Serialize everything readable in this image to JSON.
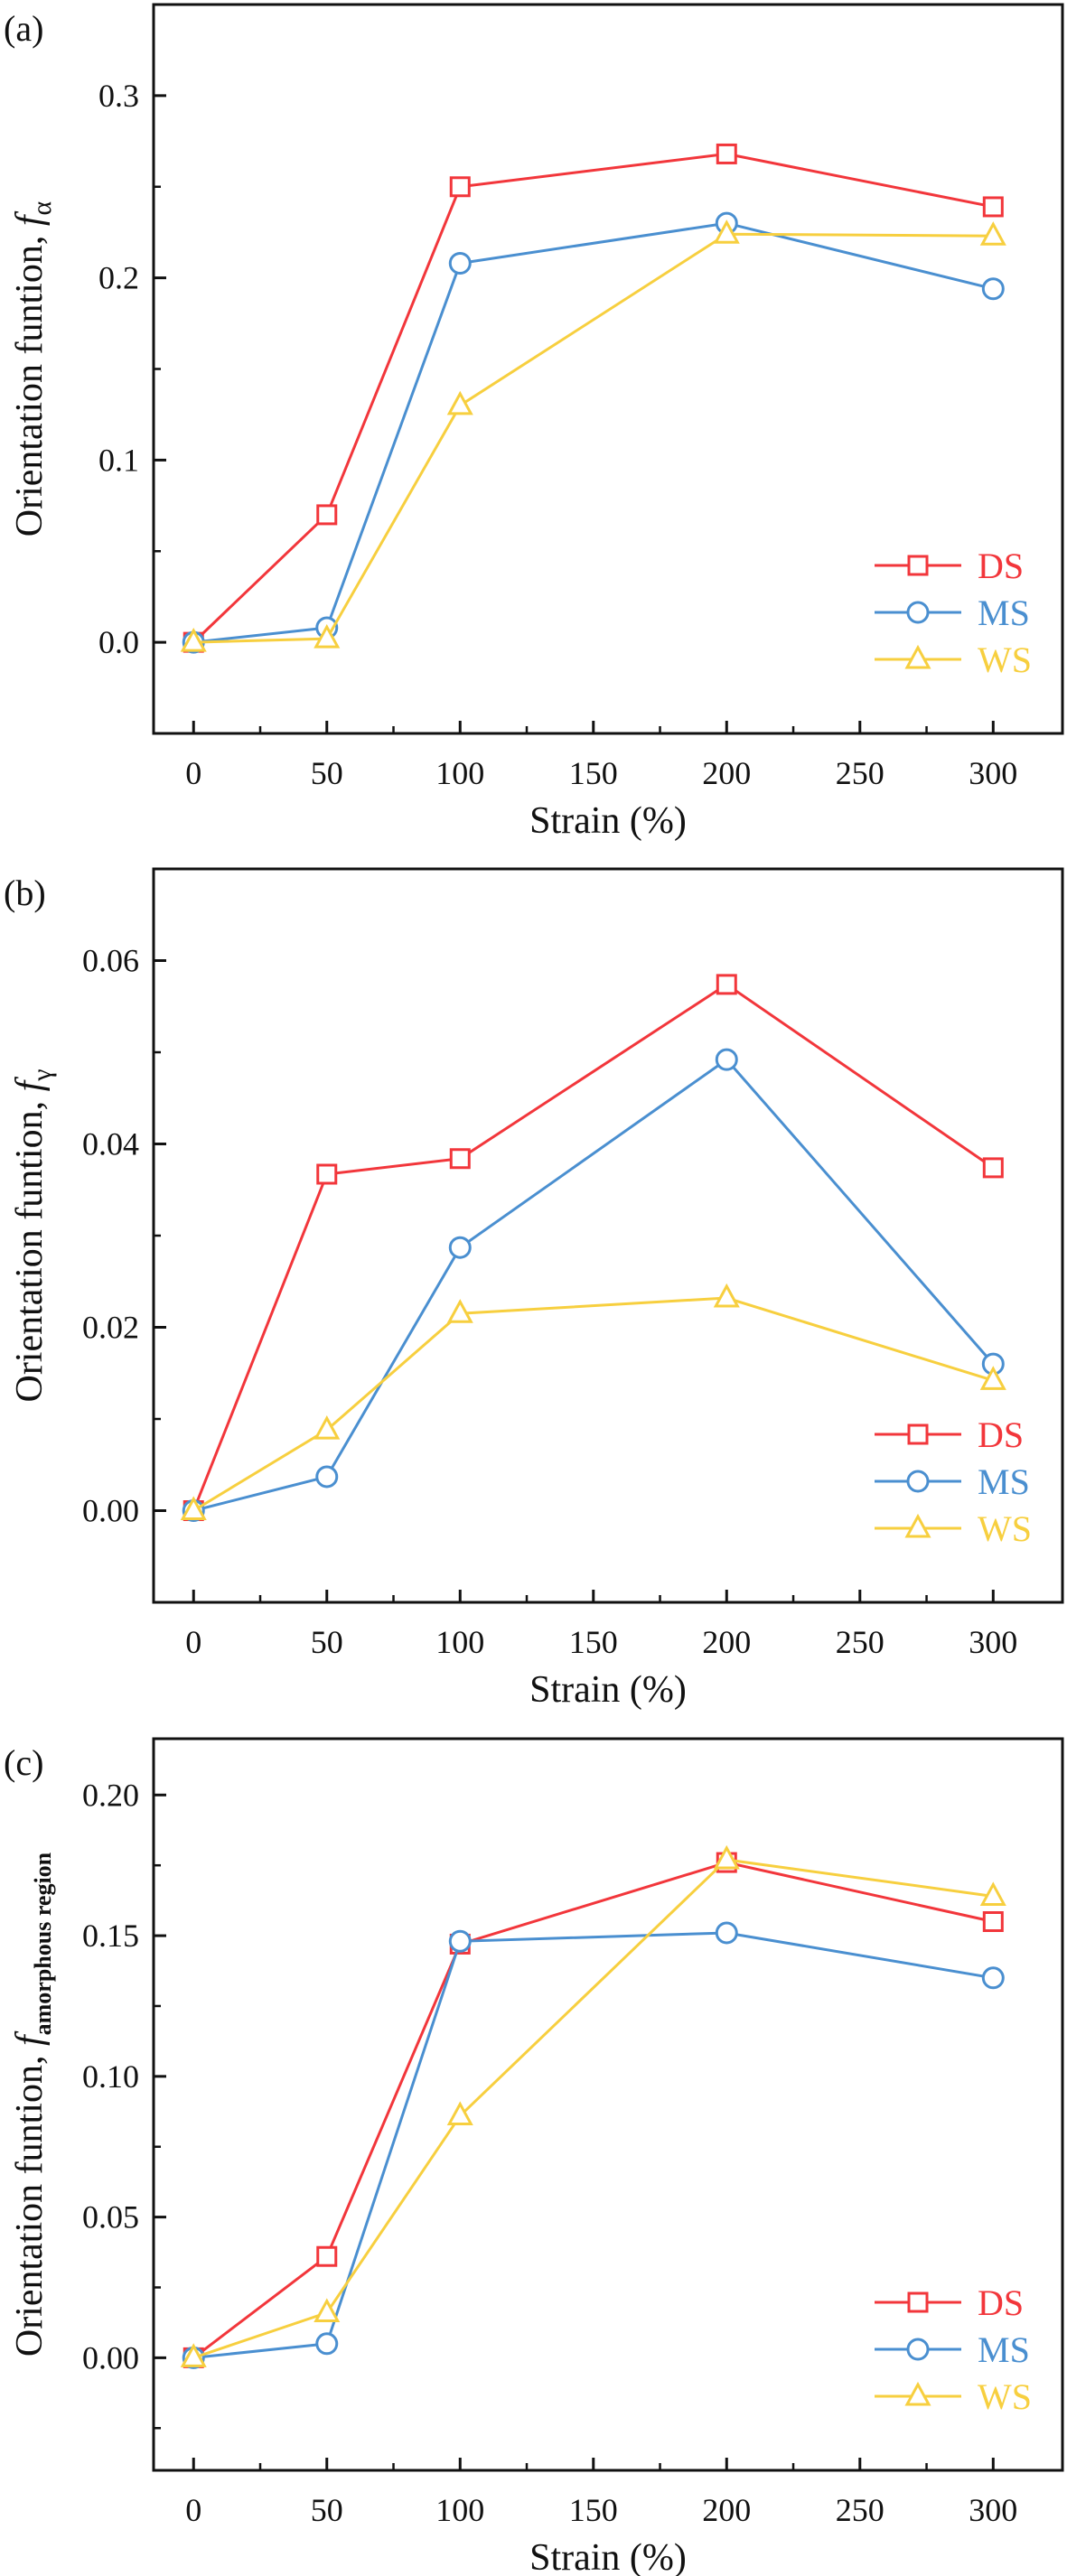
{
  "colors": {
    "DS": "#f2363b",
    "MS": "#4a8fd0",
    "WS": "#f7cf3f",
    "axis": "#111111"
  },
  "chart_data": [
    {
      "type": "line",
      "panel_label": "(a)",
      "xlabel": "Strain (%)",
      "ylabel": "Orientation funtion, ",
      "ylabel_f": "f",
      "ylabel_sub": "α",
      "x": [
        0,
        50,
        100,
        200,
        300
      ],
      "xlim": [
        -15,
        326
      ],
      "ylim": [
        -0.05,
        0.35
      ],
      "xticks": [
        0,
        50,
        100,
        150,
        200,
        250,
        300
      ],
      "xtick_labels": [
        "0",
        "50",
        "100",
        "150",
        "200",
        "250",
        "300"
      ],
      "yticks": [
        0.0,
        0.1,
        0.2,
        0.3
      ],
      "ytick_labels": [
        "0.0",
        "0.1",
        "0.2",
        "0.3"
      ],
      "legend_position": "lower-right",
      "grid": false,
      "series": [
        {
          "name": "DS",
          "marker": "square",
          "values": [
            0.0,
            0.07,
            0.25,
            0.268,
            0.239
          ]
        },
        {
          "name": "MS",
          "marker": "circle",
          "values": [
            0.0,
            0.008,
            0.208,
            0.23,
            0.194
          ]
        },
        {
          "name": "WS",
          "marker": "triangle",
          "values": [
            0.0,
            0.002,
            0.13,
            0.224,
            0.223
          ]
        }
      ]
    },
    {
      "type": "line",
      "panel_label": "(b)",
      "xlabel": "Strain (%)",
      "ylabel": "Orientation funtion, ",
      "ylabel_f": "f",
      "ylabel_sub": "γ",
      "x": [
        0,
        50,
        100,
        200,
        300
      ],
      "xlim": [
        -15,
        326
      ],
      "ylim": [
        -0.01,
        0.07
      ],
      "xticks": [
        0,
        50,
        100,
        150,
        200,
        250,
        300
      ],
      "xtick_labels": [
        "0",
        "50",
        "100",
        "150",
        "200",
        "250",
        "300"
      ],
      "yticks": [
        0.0,
        0.02,
        0.04,
        0.06
      ],
      "ytick_labels": [
        "0.00",
        "0.02",
        "0.04",
        "0.06"
      ],
      "legend_position": "lower-right",
      "grid": false,
      "series": [
        {
          "name": "DS",
          "marker": "square",
          "values": [
            0.0,
            0.0367,
            0.0384,
            0.0574,
            0.0374
          ]
        },
        {
          "name": "MS",
          "marker": "circle",
          "values": [
            0.0,
            0.0037,
            0.0287,
            0.0492,
            0.016
          ]
        },
        {
          "name": "WS",
          "marker": "triangle",
          "values": [
            0.0,
            0.0088,
            0.0215,
            0.0232,
            0.0142
          ]
        }
      ]
    },
    {
      "type": "line",
      "panel_label": "(c)",
      "xlabel": "Strain (%)",
      "ylabel": "Orientation funtion, ",
      "ylabel_f": "f",
      "ylabel_sub": "amorphous region",
      "x": [
        0,
        50,
        100,
        200,
        300
      ],
      "xlim": [
        -15,
        326
      ],
      "ylim": [
        -0.04,
        0.22
      ],
      "xticks": [
        0,
        50,
        100,
        150,
        200,
        250,
        300
      ],
      "xtick_labels": [
        "0",
        "50",
        "100",
        "150",
        "200",
        "250",
        "300"
      ],
      "yticks": [
        0.0,
        0.05,
        0.1,
        0.15,
        0.2
      ],
      "ytick_labels": [
        "0.00",
        "0.05",
        "0.10",
        "0.15",
        "0.20"
      ],
      "legend_position": "lower-right",
      "grid": false,
      "series": [
        {
          "name": "DS",
          "marker": "square",
          "values": [
            0.0,
            0.036,
            0.147,
            0.176,
            0.155
          ]
        },
        {
          "name": "MS",
          "marker": "circle",
          "values": [
            0.0,
            0.005,
            0.148,
            0.151,
            0.135
          ]
        },
        {
          "name": "WS",
          "marker": "triangle",
          "values": [
            0.0,
            0.016,
            0.086,
            0.177,
            0.164
          ]
        }
      ]
    }
  ]
}
